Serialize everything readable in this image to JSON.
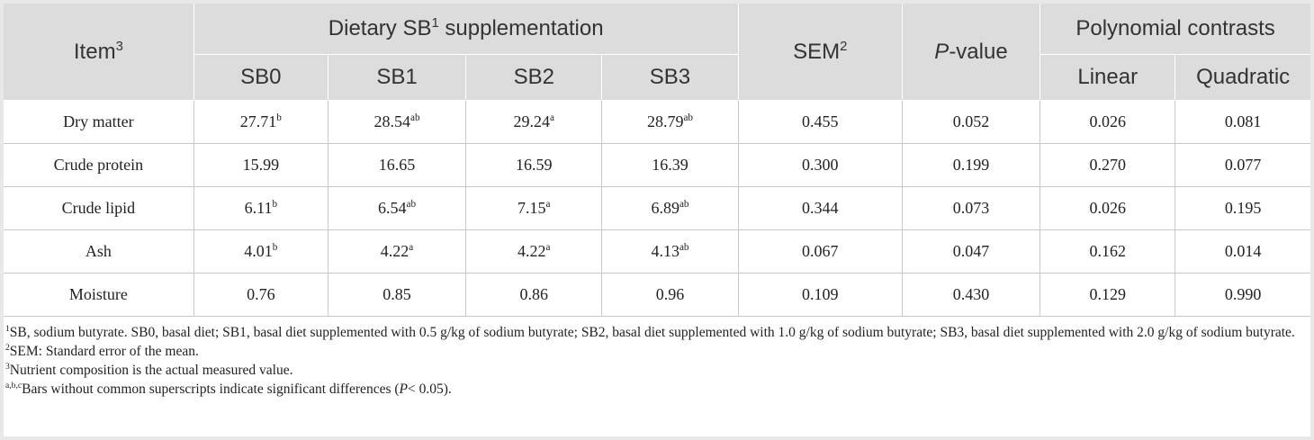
{
  "header": {
    "item_label": "Item",
    "item_sup": "3",
    "group_pre": "Dietary SB",
    "group_sup": "1",
    "group_post": " supplementation",
    "sem_label": "SEM",
    "sem_sup": "2",
    "pvalue_italic": "P",
    "pvalue_rest": "-value",
    "contrasts_label": "Polynomial contrasts",
    "sub": [
      "SB0",
      "SB1",
      "SB2",
      "SB3"
    ],
    "linear": "Linear",
    "quadratic": "Quadratic"
  },
  "rows": [
    {
      "item": "Dry matter",
      "sb0": "27.71",
      "sb0_sup": "b",
      "sb1": "28.54",
      "sb1_sup": "ab",
      "sb2": "29.24",
      "sb2_sup": "a",
      "sb3": "28.79",
      "sb3_sup": "ab",
      "sem": "0.455",
      "p": "0.052",
      "linear": "0.026",
      "quadratic": "0.081"
    },
    {
      "item": "Crude protein",
      "sb0": "15.99",
      "sb0_sup": "",
      "sb1": "16.65",
      "sb1_sup": "",
      "sb2": "16.59",
      "sb2_sup": "",
      "sb3": "16.39",
      "sb3_sup": "",
      "sem": "0.300",
      "p": "0.199",
      "linear": "0.270",
      "quadratic": "0.077"
    },
    {
      "item": "Crude lipid",
      "sb0": "6.11",
      "sb0_sup": "b",
      "sb1": "6.54",
      "sb1_sup": "ab",
      "sb2": "7.15",
      "sb2_sup": "a",
      "sb3": "6.89",
      "sb3_sup": "ab",
      "sem": "0.344",
      "p": "0.073",
      "linear": "0.026",
      "quadratic": "0.195"
    },
    {
      "item": "Ash",
      "sb0": "4.01",
      "sb0_sup": "b",
      "sb1": "4.22",
      "sb1_sup": "a",
      "sb2": "4.22",
      "sb2_sup": "a",
      "sb3": "4.13",
      "sb3_sup": "ab",
      "sem": "0.067",
      "p": "0.047",
      "linear": "0.162",
      "quadratic": "0.014"
    },
    {
      "item": "Moisture",
      "sb0": "0.76",
      "sb0_sup": "",
      "sb1": "0.85",
      "sb1_sup": "",
      "sb2": "0.86",
      "sb2_sup": "",
      "sb3": "0.96",
      "sb3_sup": "",
      "sem": "0.109",
      "p": "0.430",
      "linear": "0.129",
      "quadratic": "0.990"
    }
  ],
  "notes": {
    "n1_sup": "1",
    "n1_text": "SB, sodium butyrate. SB0, basal diet; SB1, basal diet supplemented with 0.5 g/kg of sodium butyrate; SB2, basal diet supplemented with 1.0 g/kg of sodium butyrate; SB3, basal diet supplemented with 2.0 g/kg of sodium butyrate.",
    "n2_sup": "2",
    "n2_text": "SEM: Standard error of the mean.",
    "n3_sup": "3",
    "n3_text": "Nutrient composition is the actual measured value.",
    "n4_sup": "a,b,c",
    "n4_text_pre": "Bars without common superscripts indicate significant differences (",
    "n4_italic": "P",
    "n4_text_post": "< 0.05)."
  }
}
